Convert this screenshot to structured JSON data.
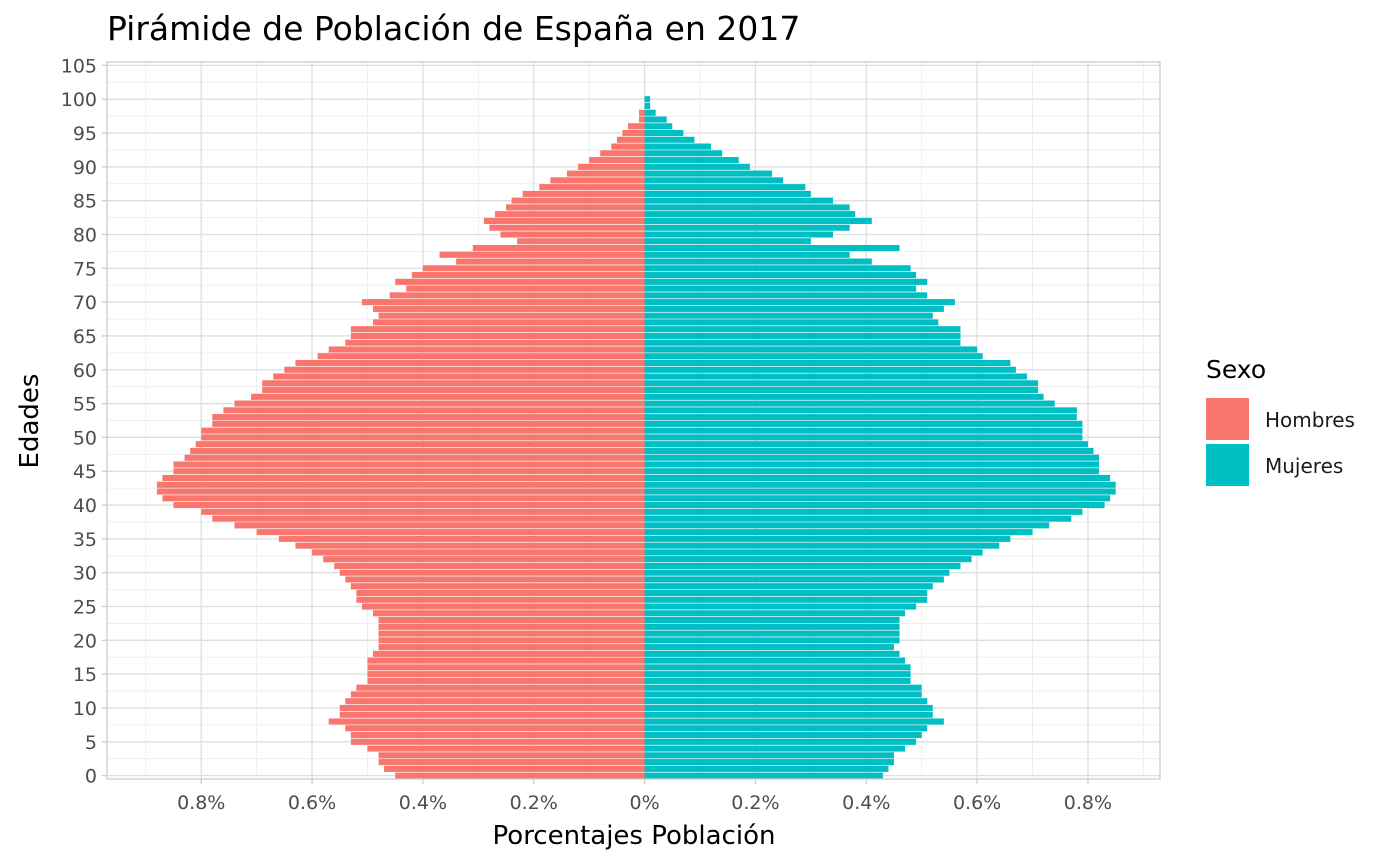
{
  "chart_data": {
    "type": "bar",
    "orientation": "horizontal-pyramid",
    "title": "Pirámide de Población de España en 2017",
    "xlabel": "Porcentajes Población",
    "ylabel": "Edades",
    "xlim": [
      -0.97,
      0.93
    ],
    "ylim": [
      -0.5,
      105.5
    ],
    "x_ticks": [
      -0.8,
      -0.6,
      -0.4,
      -0.2,
      0,
      0.2,
      0.4,
      0.6,
      0.8
    ],
    "x_tick_labels": [
      "0.8%",
      "0.6%",
      "0.4%",
      "0.2%",
      "0%",
      "0.2%",
      "0.4%",
      "0.6%",
      "0.8%"
    ],
    "y_ticks": [
      0,
      5,
      10,
      15,
      20,
      25,
      30,
      35,
      40,
      45,
      50,
      55,
      60,
      65,
      70,
      75,
      80,
      85,
      90,
      95,
      100,
      105
    ],
    "y_tick_labels": [
      "0",
      "5",
      "10",
      "15",
      "20",
      "25",
      "30",
      "35",
      "40",
      "45",
      "50",
      "55",
      "60",
      "65",
      "70",
      "75",
      "80",
      "85",
      "90",
      "95",
      "100",
      "105"
    ],
    "grid": true,
    "legend": {
      "title": "Sexo",
      "position": "right"
    },
    "series": [
      {
        "name": "Hombres",
        "color": "#F8766D",
        "ages": [
          0,
          1,
          2,
          3,
          4,
          5,
          6,
          7,
          8,
          9,
          10,
          11,
          12,
          13,
          14,
          15,
          16,
          17,
          18,
          19,
          20,
          21,
          22,
          23,
          24,
          25,
          26,
          27,
          28,
          29,
          30,
          31,
          32,
          33,
          34,
          35,
          36,
          37,
          38,
          39,
          40,
          41,
          42,
          43,
          44,
          45,
          46,
          47,
          48,
          49,
          50,
          51,
          52,
          53,
          54,
          55,
          56,
          57,
          58,
          59,
          60,
          61,
          62,
          63,
          64,
          65,
          66,
          67,
          68,
          69,
          70,
          71,
          72,
          73,
          74,
          75,
          76,
          77,
          78,
          79,
          80,
          81,
          82,
          83,
          84,
          85,
          86,
          87,
          88,
          89,
          90,
          91,
          92,
          93,
          94,
          95,
          96,
          97,
          98,
          99,
          100
        ],
        "values": [
          0.45,
          0.47,
          0.48,
          0.48,
          0.5,
          0.53,
          0.53,
          0.54,
          0.57,
          0.55,
          0.55,
          0.54,
          0.53,
          0.52,
          0.5,
          0.5,
          0.5,
          0.5,
          0.49,
          0.48,
          0.48,
          0.48,
          0.48,
          0.48,
          0.49,
          0.51,
          0.52,
          0.52,
          0.53,
          0.54,
          0.55,
          0.56,
          0.58,
          0.6,
          0.63,
          0.66,
          0.7,
          0.74,
          0.78,
          0.8,
          0.85,
          0.87,
          0.88,
          0.88,
          0.87,
          0.85,
          0.85,
          0.83,
          0.82,
          0.81,
          0.8,
          0.8,
          0.78,
          0.78,
          0.76,
          0.74,
          0.71,
          0.69,
          0.69,
          0.67,
          0.65,
          0.63,
          0.59,
          0.57,
          0.54,
          0.53,
          0.53,
          0.49,
          0.48,
          0.49,
          0.51,
          0.46,
          0.43,
          0.45,
          0.42,
          0.4,
          0.34,
          0.37,
          0.31,
          0.23,
          0.26,
          0.28,
          0.29,
          0.27,
          0.25,
          0.24,
          0.22,
          0.19,
          0.17,
          0.14,
          0.12,
          0.1,
          0.08,
          0.06,
          0.05,
          0.04,
          0.03,
          0.01,
          0.01,
          0.0,
          0.0
        ]
      },
      {
        "name": "Mujeres",
        "color": "#00BFC4",
        "ages": [
          0,
          1,
          2,
          3,
          4,
          5,
          6,
          7,
          8,
          9,
          10,
          11,
          12,
          13,
          14,
          15,
          16,
          17,
          18,
          19,
          20,
          21,
          22,
          23,
          24,
          25,
          26,
          27,
          28,
          29,
          30,
          31,
          32,
          33,
          34,
          35,
          36,
          37,
          38,
          39,
          40,
          41,
          42,
          43,
          44,
          45,
          46,
          47,
          48,
          49,
          50,
          51,
          52,
          53,
          54,
          55,
          56,
          57,
          58,
          59,
          60,
          61,
          62,
          63,
          64,
          65,
          66,
          67,
          68,
          69,
          70,
          71,
          72,
          73,
          74,
          75,
          76,
          77,
          78,
          79,
          80,
          81,
          82,
          83,
          84,
          85,
          86,
          87,
          88,
          89,
          90,
          91,
          92,
          93,
          94,
          95,
          96,
          97,
          98,
          99,
          100
        ],
        "values": [
          0.43,
          0.44,
          0.45,
          0.45,
          0.47,
          0.49,
          0.5,
          0.51,
          0.54,
          0.52,
          0.52,
          0.51,
          0.5,
          0.5,
          0.48,
          0.48,
          0.48,
          0.47,
          0.46,
          0.45,
          0.46,
          0.46,
          0.46,
          0.46,
          0.47,
          0.49,
          0.51,
          0.51,
          0.52,
          0.54,
          0.55,
          0.57,
          0.59,
          0.61,
          0.64,
          0.66,
          0.7,
          0.73,
          0.77,
          0.79,
          0.83,
          0.84,
          0.85,
          0.85,
          0.84,
          0.82,
          0.82,
          0.82,
          0.81,
          0.8,
          0.79,
          0.79,
          0.79,
          0.78,
          0.78,
          0.74,
          0.72,
          0.71,
          0.71,
          0.69,
          0.67,
          0.66,
          0.61,
          0.6,
          0.57,
          0.57,
          0.57,
          0.53,
          0.52,
          0.54,
          0.56,
          0.51,
          0.49,
          0.51,
          0.49,
          0.48,
          0.41,
          0.37,
          0.46,
          0.3,
          0.34,
          0.37,
          0.41,
          0.38,
          0.37,
          0.34,
          0.3,
          0.29,
          0.25,
          0.23,
          0.19,
          0.17,
          0.14,
          0.12,
          0.09,
          0.07,
          0.05,
          0.04,
          0.02,
          0.01,
          0.01
        ]
      }
    ]
  }
}
